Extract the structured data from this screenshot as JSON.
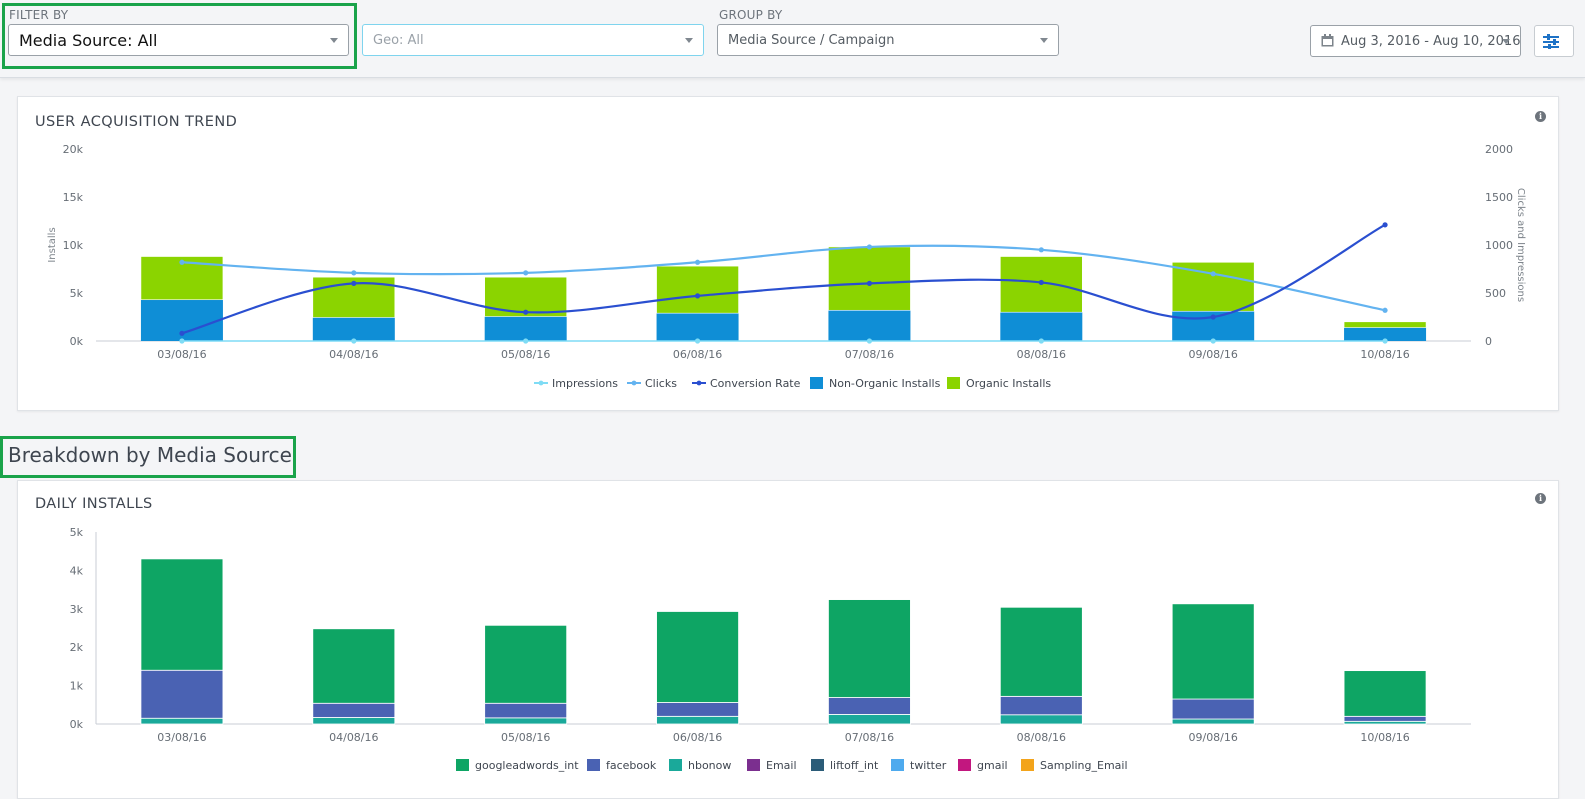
{
  "filters": {
    "filter_by_label": "FILTER BY",
    "media_source": "Media Source: All",
    "geo": "Geo: All",
    "group_by_label": "GROUP BY",
    "group_by": "Media Source / Campaign",
    "date_range": "Aug 3, 2016 - Aug 10, 2016"
  },
  "trend_card": {
    "title": "USER ACQUISITION TREND"
  },
  "breakdown": {
    "heading": "Breakdown by Media Source"
  },
  "daily_card": {
    "title": "DAILY INSTALLS"
  },
  "colors": {
    "highlight": "#1aa34a",
    "impressions": "#7fdcf5",
    "clicks": "#63b3f0",
    "conversion": "#2a4fd0",
    "non_organic": "#0f8ed6",
    "organic": "#8bd400",
    "googleadwords_int": "#0ea564",
    "facebook": "#4a62b3",
    "hbonow": "#1aa99a",
    "Email": "#7b2f8f",
    "liftoff_int": "#2b5c78",
    "twitter": "#4eaaee",
    "gmail": "#c2177f",
    "Sampling_Email": "#f3a41b"
  },
  "chart_data": [
    {
      "type": "bar",
      "title": "USER ACQUISITION TREND",
      "categories": [
        "03/08/16",
        "04/08/16",
        "05/08/16",
        "06/08/16",
        "07/08/16",
        "08/08/16",
        "09/08/16",
        "10/08/16"
      ],
      "ylabel": "Installs",
      "y2label": "Clicks and Impressions",
      "ylim": [
        0,
        20000
      ],
      "y2lim": [
        0,
        2000
      ],
      "yticks": [
        "0k",
        "5k",
        "10k",
        "15k",
        "20k"
      ],
      "y2ticks": [
        "0",
        "500",
        "1000",
        "1500",
        "2000"
      ],
      "stacked": true,
      "grid": false,
      "legend": "bottom",
      "series": [
        {
          "name": "Impressions",
          "type": "line",
          "axis": "right",
          "values": [
            0,
            0,
            0,
            0,
            0,
            0,
            0,
            0
          ]
        },
        {
          "name": "Clicks",
          "type": "line",
          "axis": "right",
          "values": [
            820,
            710,
            710,
            820,
            980,
            950,
            700,
            320
          ]
        },
        {
          "name": "Conversion Rate",
          "type": "line",
          "axis": "right",
          "values": [
            80,
            600,
            300,
            470,
            600,
            610,
            250,
            1210
          ]
        },
        {
          "name": "Non-Organic Installs",
          "type": "bar",
          "axis": "left",
          "values": [
            4300,
            2450,
            2550,
            2900,
            3200,
            3000,
            3100,
            1400
          ]
        },
        {
          "name": "Organic Installs",
          "type": "bar",
          "axis": "left",
          "values": [
            4500,
            4200,
            4100,
            4900,
            6600,
            5800,
            5100,
            600
          ]
        }
      ]
    },
    {
      "type": "bar",
      "title": "DAILY INSTALLS",
      "categories": [
        "03/08/16",
        "04/08/16",
        "05/08/16",
        "06/08/16",
        "07/08/16",
        "08/08/16",
        "09/08/16",
        "10/08/16"
      ],
      "ylim": [
        0,
        5000
      ],
      "yticks": [
        "0k",
        "1k",
        "2k",
        "3k",
        "4k",
        "5k"
      ],
      "stacked": true,
      "grid": false,
      "legend": "bottom",
      "series": [
        {
          "name": "hbonow",
          "values": [
            150,
            170,
            160,
            200,
            250,
            240,
            130,
            70
          ]
        },
        {
          "name": "facebook",
          "values": [
            1250,
            370,
            380,
            360,
            440,
            480,
            520,
            130
          ]
        },
        {
          "name": "googleadwords_int",
          "values": [
            2900,
            1940,
            2030,
            2370,
            2550,
            2320,
            2480,
            1190
          ]
        },
        {
          "name": "Email",
          "values": [
            0,
            0,
            0,
            0,
            0,
            0,
            0,
            0
          ]
        },
        {
          "name": "liftoff_int",
          "values": [
            0,
            0,
            0,
            0,
            0,
            0,
            0,
            0
          ]
        },
        {
          "name": "twitter",
          "values": [
            0,
            0,
            0,
            0,
            0,
            0,
            0,
            0
          ]
        },
        {
          "name": "gmail",
          "values": [
            0,
            0,
            0,
            0,
            0,
            0,
            0,
            0
          ]
        },
        {
          "name": "Sampling_Email",
          "values": [
            0,
            0,
            0,
            0,
            0,
            0,
            0,
            0
          ]
        }
      ],
      "legend_order": [
        "googleadwords_int",
        "facebook",
        "hbonow",
        "Email",
        "liftoff_int",
        "twitter",
        "gmail",
        "Sampling_Email"
      ]
    }
  ]
}
